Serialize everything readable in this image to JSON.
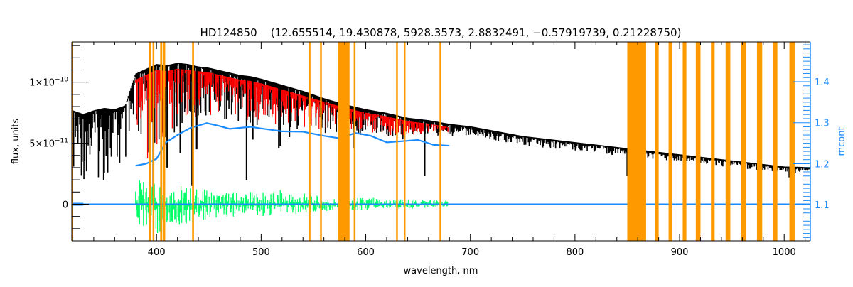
{
  "chart_data": {
    "type": "line",
    "title": "HD124850    (12.655514, 19.430878, 5928.3573, 2.8832491, −0.57919739, 0.21228750)",
    "xlabel": "wavelength, nm",
    "ylabel": "flux, units",
    "y2label": "mcont",
    "xlim": [
      319,
      1025
    ],
    "ylim": [
      -3e-11,
      1.33e-10
    ],
    "y2lim": [
      1.012,
      1.497
    ],
    "grid": false,
    "legend": "none",
    "x_ticks": [
      {
        "value": 400,
        "label": "400"
      },
      {
        "value": 500,
        "label": "500"
      },
      {
        "value": 600,
        "label": "600"
      },
      {
        "value": 700,
        "label": "700"
      },
      {
        "value": 800,
        "label": "800"
      },
      {
        "value": 900,
        "label": "900"
      },
      {
        "value": 1000,
        "label": "1000"
      }
    ],
    "y_ticks": [
      {
        "value": 0,
        "mantissa": "0",
        "exponent": ""
      },
      {
        "value": 5e-11,
        "mantissa": "5×10",
        "exponent": "−11"
      },
      {
        "value": 1e-10,
        "mantissa": "1×10",
        "exponent": "−10"
      }
    ],
    "y2_ticks": [
      {
        "value": 1.1,
        "label": "1.1"
      },
      {
        "value": 1.2,
        "label": "1.2"
      },
      {
        "value": 1.3,
        "label": "1.3"
      },
      {
        "value": 1.4,
        "label": "1.4"
      }
    ],
    "colors": {
      "observed": "#000000",
      "model": "#ff0000",
      "residual": "#00ff66",
      "mcont": "#1a8cff",
      "masked": "#ff9900",
      "highlight": "#ffff00",
      "y2axis": "#1a8cff"
    },
    "masked_regions_nm": [
      [
        318.5,
        320
      ],
      [
        393,
        394.5
      ],
      [
        396.2,
        397.6
      ],
      [
        403.5,
        405.5
      ],
      [
        406.6,
        408
      ],
      [
        434,
        435.8
      ],
      [
        545.5,
        546.8
      ],
      [
        556.3,
        557.6
      ],
      [
        573.5,
        584.5
      ],
      [
        588.5,
        590
      ],
      [
        629,
        630.5
      ],
      [
        636.3,
        637.6
      ],
      [
        670.5,
        672
      ],
      [
        850,
        868
      ],
      [
        876.5,
        880
      ],
      [
        889.5,
        893
      ],
      [
        903,
        906.5
      ],
      [
        915.5,
        920
      ],
      [
        930,
        933.5
      ],
      [
        944,
        948.5
      ],
      [
        959,
        963.5
      ],
      [
        974,
        979
      ],
      [
        989.5,
        993.5
      ],
      [
        1005,
        1010
      ]
    ],
    "observed": {
      "x": [
        320,
        330,
        340,
        350,
        360,
        370,
        380,
        390,
        400,
        410,
        420,
        430,
        440,
        450,
        460,
        470,
        480,
        490,
        500,
        520,
        540,
        560,
        580,
        600,
        620,
        640,
        660,
        680,
        700,
        750,
        800,
        850,
        900,
        950,
        1000,
        1025
      ],
      "upper": [
        7.6e-11,
        7.3e-11,
        7.6e-11,
        7.8e-11,
        7.7e-11,
        8e-11,
        1.06e-10,
        1.1e-10,
        1.14e-10,
        1.13e-10,
        1.15e-10,
        1.14e-10,
        1.12e-10,
        1.11e-10,
        1.09e-10,
        1.07e-10,
        1.05e-10,
        1.04e-10,
        1.02e-10,
        9.7e-11,
        9.2e-11,
        8.6e-11,
        8.1e-11,
        7.7e-11,
        7.4e-11,
        7e-11,
        6.8e-11,
        6.5e-11,
        6.3e-11,
        5.5e-11,
        5e-11,
        4.5e-11,
        4e-11,
        3.5e-11,
        3e-11,
        2.95e-11
      ],
      "lower": [
        2.5e-11,
        2e-11,
        2.3e-11,
        1.8e-11,
        2.4e-11,
        2.2e-11,
        2e-11,
        3e-11,
        4.5e-11,
        5e-11,
        6.2e-11,
        6e-11,
        6.8e-11,
        7e-11,
        6.8e-11,
        6.8e-11,
        6.6e-11,
        6.5e-11,
        6.4e-11,
        6.2e-11,
        6e-11,
        5.8e-11,
        5.6e-11,
        5.6e-11,
        5.4e-11,
        5.2e-11,
        5.6e-11,
        5.6e-11,
        5.6e-11,
        4.8e-11,
        4.4e-11,
        3.9e-11,
        3.5e-11,
        3e-11,
        2.6e-11,
        2.5e-11
      ]
    },
    "absorption_lines": [
      {
        "x": 393.4,
        "min": 3e-12
      },
      {
        "x": 396.8,
        "min": 5e-12
      },
      {
        "x": 410.2,
        "min": 3e-11
      },
      {
        "x": 422.7,
        "min": 4.2e-11
      },
      {
        "x": 434.0,
        "min": 1.5e-11
      },
      {
        "x": 438.4,
        "min": 4.5e-11
      },
      {
        "x": 486.1,
        "min": 2e-11
      },
      {
        "x": 492.0,
        "min": 5.3e-11
      },
      {
        "x": 516.9,
        "min": 4.6e-11
      },
      {
        "x": 518.4,
        "min": 4.8e-11
      },
      {
        "x": 527.0,
        "min": 5.5e-11
      },
      {
        "x": 589.0,
        "min": 4.6e-11
      },
      {
        "x": 656.3,
        "min": 2.3e-11
      },
      {
        "x": 850.0,
        "min": 2.3e-11
      },
      {
        "x": 854.2,
        "min": 3e-11
      },
      {
        "x": 866.2,
        "min": 2.8e-11
      },
      {
        "x": 1004.9,
        "min": 2.2e-11
      }
    ],
    "model": {
      "x": [
        380,
        390,
        400,
        410,
        420,
        430,
        440,
        450,
        460,
        470,
        480,
        490,
        500,
        520,
        540,
        560,
        580,
        600,
        620,
        640,
        660,
        680
      ],
      "upper": [
        1.02e-10,
        1.06e-10,
        1.1e-10,
        1.09e-10,
        1.11e-10,
        1.1e-10,
        1.09e-10,
        1.08e-10,
        1.06e-10,
        1.04e-10,
        1.02e-10,
        1.01e-10,
        9.9e-11,
        9.4e-11,
        8.9e-11,
        8.4e-11,
        7.9e-11,
        7.5e-11,
        7.2e-11,
        6.8e-11,
        6.6e-11,
        6.3e-11
      ],
      "lower": [
        2.6e-11,
        3.4e-11,
        4.8e-11,
        5.4e-11,
        6.5e-11,
        6.4e-11,
        7.1e-11,
        7.3e-11,
        7.1e-11,
        7.1e-11,
        6.9e-11,
        6.8e-11,
        6.7e-11,
        6.5e-11,
        6.3e-11,
        6.1e-11,
        5.9e-11,
        5.9e-11,
        5.7e-11,
        5.5e-11,
        5.9e-11,
        5.9e-11
      ]
    },
    "residuals": {
      "x": [
        380,
        400,
        420,
        440,
        460,
        480,
        500,
        520,
        540,
        560,
        580,
        600,
        620,
        640,
        660,
        680
      ],
      "upper": [
        2e-11,
        2.2e-11,
        1.8e-11,
        1.3e-11,
        1e-11,
        1.1e-11,
        1e-11,
        1.2e-11,
        1e-11,
        6e-12,
        5e-12,
        6e-12,
        5e-12,
        4e-12,
        5e-12,
        3e-12
      ],
      "lower": [
        -1.8e-11,
        -2.4e-11,
        -2e-11,
        -1.4e-11,
        -1.1e-11,
        -1e-11,
        -1e-11,
        -9e-12,
        -8e-12,
        -6e-12,
        -6e-12,
        -5e-12,
        -4e-12,
        -4e-12,
        -3e-12,
        -2e-12
      ]
    },
    "mcont": {
      "x": [
        380,
        390,
        400,
        409,
        420,
        432,
        448,
        460,
        470,
        490,
        500,
        520,
        540,
        560,
        575,
        590,
        605,
        620,
        635,
        650,
        665,
        680
      ],
      "y": [
        1.195,
        1.2,
        1.212,
        1.252,
        1.27,
        1.287,
        1.299,
        1.292,
        1.285,
        1.29,
        1.286,
        1.279,
        1.278,
        1.268,
        1.262,
        1.275,
        1.268,
        1.252,
        1.255,
        1.258,
        1.246,
        1.244
      ]
    },
    "zero_line": 0
  }
}
